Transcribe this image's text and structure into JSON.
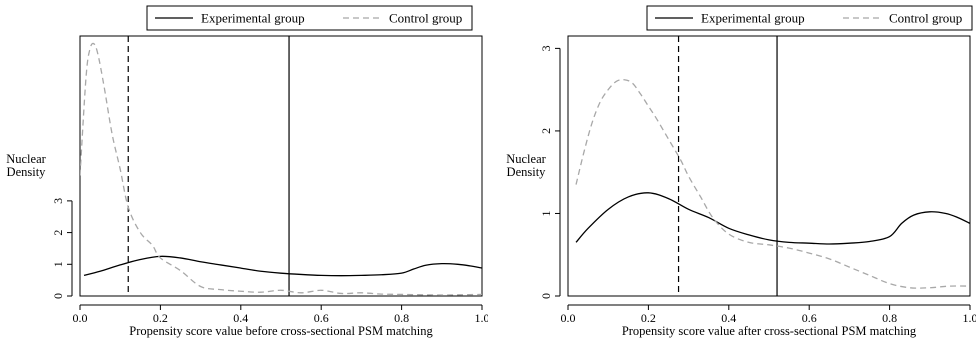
{
  "colors": {
    "experimental": "#000000",
    "control": "#a8a8a8",
    "axis": "#000000"
  },
  "chart_data": [
    {
      "type": "line",
      "title": "",
      "xlabel": "Propensity score value before cross-sectional PSM matching",
      "ylabel": "Nuclear Density",
      "ylabel_lines": [
        "Nuclear",
        "Density"
      ],
      "xlim": [
        0,
        1
      ],
      "ylim": [
        0,
        8.2
      ],
      "xticks": [
        0.0,
        0.2,
        0.4,
        0.6,
        0.8,
        1.0
      ],
      "xtick_labels": [
        "0.0",
        "0.2",
        "0.4",
        "0.6",
        "0.8",
        "1.0"
      ],
      "yticks": [
        0,
        1,
        2,
        3
      ],
      "ytick_labels": [
        "0",
        "1",
        "2",
        "3"
      ],
      "grid": false,
      "legend_position": "top",
      "vlines": [
        {
          "x": 0.12,
          "style": "dashed"
        },
        {
          "x": 0.52,
          "style": "solid"
        }
      ],
      "series": [
        {
          "name": "Experimental group",
          "style": "solid",
          "x": [
            0.01,
            0.05,
            0.1,
            0.15,
            0.2,
            0.25,
            0.3,
            0.35,
            0.4,
            0.45,
            0.5,
            0.55,
            0.6,
            0.65,
            0.7,
            0.75,
            0.8,
            0.83,
            0.86,
            0.9,
            0.94,
            0.97,
            1.0
          ],
          "values": [
            0.65,
            0.78,
            0.98,
            1.15,
            1.25,
            1.2,
            1.08,
            0.98,
            0.88,
            0.78,
            0.72,
            0.68,
            0.65,
            0.64,
            0.65,
            0.67,
            0.72,
            0.85,
            0.97,
            1.02,
            1.0,
            0.95,
            0.88
          ]
        },
        {
          "name": "Control group",
          "style": "dashed",
          "x": [
            0.0,
            0.015,
            0.025,
            0.035,
            0.045,
            0.06,
            0.08,
            0.1,
            0.12,
            0.15,
            0.18,
            0.2,
            0.25,
            0.3,
            0.35,
            0.4,
            0.45,
            0.5,
            0.55,
            0.6,
            0.65,
            0.7,
            0.75,
            0.8,
            0.85,
            0.9,
            0.95,
            1.0
          ],
          "values": [
            3.8,
            6.9,
            7.8,
            7.95,
            7.6,
            6.6,
            5.1,
            4.0,
            2.8,
            2.0,
            1.6,
            1.2,
            0.8,
            0.3,
            0.2,
            0.15,
            0.12,
            0.18,
            0.1,
            0.18,
            0.08,
            0.1,
            0.06,
            0.05,
            0.04,
            0.03,
            0.04,
            0.05
          ]
        }
      ]
    },
    {
      "type": "line",
      "title": "",
      "xlabel": "Propensity score value after cross-sectional PSM matching",
      "ylabel": "Nuclear Density",
      "ylabel_lines": [
        "Nuclear",
        "Density"
      ],
      "xlim": [
        0,
        1
      ],
      "ylim": [
        0,
        3.15
      ],
      "xticks": [
        0.0,
        0.2,
        0.4,
        0.6,
        0.8,
        1.0
      ],
      "xtick_labels": [
        "0.0",
        "0.2",
        "0.4",
        "0.6",
        "0.8",
        "1.0"
      ],
      "yticks": [
        0,
        1,
        2,
        3
      ],
      "ytick_labels": [
        "0",
        "1",
        "2",
        "3"
      ],
      "grid": false,
      "legend_position": "top",
      "vlines": [
        {
          "x": 0.275,
          "style": "dashed"
        },
        {
          "x": 0.52,
          "style": "solid"
        }
      ],
      "series": [
        {
          "name": "Experimental group",
          "style": "solid",
          "x": [
            0.02,
            0.05,
            0.1,
            0.15,
            0.2,
            0.25,
            0.3,
            0.35,
            0.4,
            0.45,
            0.5,
            0.55,
            0.6,
            0.65,
            0.7,
            0.75,
            0.8,
            0.83,
            0.86,
            0.9,
            0.94,
            0.97,
            1.0
          ],
          "values": [
            0.65,
            0.82,
            1.05,
            1.2,
            1.25,
            1.18,
            1.05,
            0.95,
            0.82,
            0.74,
            0.68,
            0.65,
            0.64,
            0.63,
            0.64,
            0.66,
            0.72,
            0.88,
            0.98,
            1.02,
            1.0,
            0.95,
            0.88
          ]
        },
        {
          "name": "Control group",
          "style": "dashed",
          "x": [
            0.02,
            0.04,
            0.06,
            0.08,
            0.1,
            0.12,
            0.14,
            0.16,
            0.18,
            0.2,
            0.22,
            0.25,
            0.28,
            0.3,
            0.33,
            0.36,
            0.4,
            0.45,
            0.5,
            0.55,
            0.6,
            0.65,
            0.7,
            0.75,
            0.8,
            0.85,
            0.9,
            0.95,
            1.0
          ],
          "values": [
            1.35,
            1.75,
            2.1,
            2.35,
            2.5,
            2.6,
            2.62,
            2.58,
            2.45,
            2.3,
            2.15,
            1.9,
            1.65,
            1.45,
            1.2,
            0.95,
            0.75,
            0.65,
            0.62,
            0.58,
            0.52,
            0.45,
            0.35,
            0.25,
            0.15,
            0.1,
            0.1,
            0.12,
            0.12
          ]
        }
      ]
    }
  ]
}
